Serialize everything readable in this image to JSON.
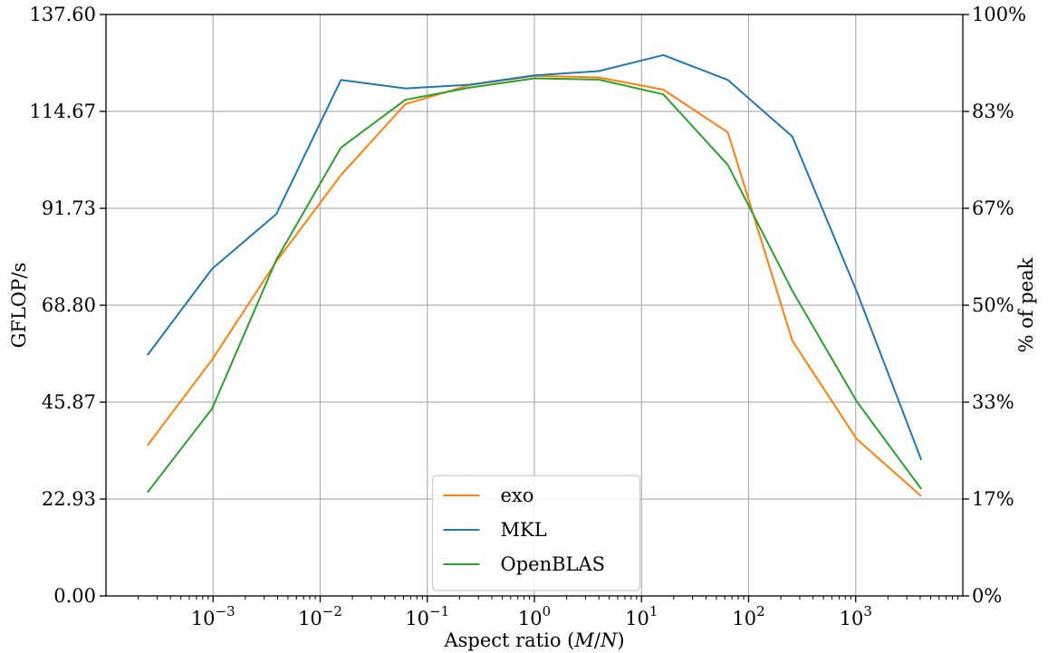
{
  "chart_data": {
    "type": "line",
    "xscale": "log",
    "xlim": [
      0.0001,
      10000
    ],
    "ylim": [
      0,
      137.6
    ],
    "y2lim": [
      0,
      100
    ],
    "xlabel": "Aspect ratio (M/N)",
    "xlabel_parts": {
      "prefix": "Aspect ratio (",
      "italic1": "M",
      "slash": "/",
      "italic2": "N",
      "suffix": ")"
    },
    "ylabel": "GFLOP/s",
    "y2label": "% of peak",
    "x_ticks": [
      {
        "value": 0.001,
        "base": "10",
        "exp": "−3"
      },
      {
        "value": 0.01,
        "base": "10",
        "exp": "−2"
      },
      {
        "value": 0.1,
        "base": "10",
        "exp": "−1"
      },
      {
        "value": 1,
        "base": "10",
        "exp": "0"
      },
      {
        "value": 10,
        "base": "10",
        "exp": "1"
      },
      {
        "value": 100,
        "base": "10",
        "exp": "2"
      },
      {
        "value": 1000,
        "base": "10",
        "exp": "3"
      }
    ],
    "y_ticks": [
      {
        "value": 0,
        "label": "0.00"
      },
      {
        "value": 22.93,
        "label": "22.93"
      },
      {
        "value": 45.87,
        "label": "45.87"
      },
      {
        "value": 68.8,
        "label": "68.80"
      },
      {
        "value": 91.73,
        "label": "91.73"
      },
      {
        "value": 114.67,
        "label": "114.67"
      },
      {
        "value": 137.6,
        "label": "137.60"
      }
    ],
    "y2_ticks": [
      {
        "value": 0,
        "label": "0%"
      },
      {
        "value": 16.67,
        "label": "17%"
      },
      {
        "value": 33.33,
        "label": "33%"
      },
      {
        "value": 50,
        "label": "50%"
      },
      {
        "value": 66.67,
        "label": "67%"
      },
      {
        "value": 83.33,
        "label": "83%"
      },
      {
        "value": 100,
        "label": "100%"
      }
    ],
    "grid": true,
    "legend_placement": "lower-center",
    "x": [
      0.000244,
      0.000977,
      0.003906,
      0.015625,
      0.0625,
      0.25,
      1,
      4,
      16,
      64,
      256,
      1024,
      4096
    ],
    "series": [
      {
        "name": "exo",
        "color": "#ff7f0e",
        "values": [
          35.6,
          55.9,
          79.2,
          99.6,
          116.4,
          120.9,
          123.1,
          122.7,
          119.8,
          109.7,
          60.4,
          37.1,
          23.6
        ]
      },
      {
        "name": "MKL",
        "color": "#1f77b4",
        "values": [
          57.0,
          77.4,
          90.4,
          122.1,
          120.1,
          121.0,
          123.2,
          124.2,
          128.0,
          122.1,
          108.7,
          72.0,
          32.2
        ]
      },
      {
        "name": "OpenBLAS",
        "color": "#2ca02c",
        "values": [
          24.5,
          44.3,
          79.6,
          106.1,
          117.4,
          120.3,
          122.5,
          122.2,
          118.7,
          102.0,
          72.2,
          46.0,
          25.3
        ]
      }
    ]
  }
}
